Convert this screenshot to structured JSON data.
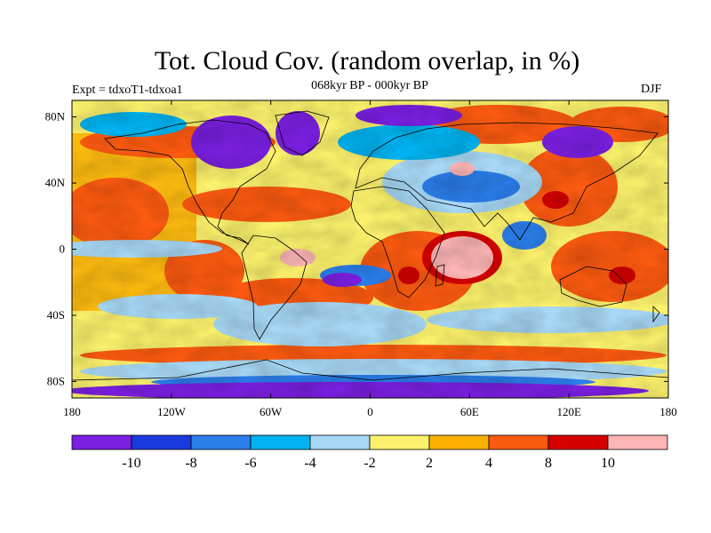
{
  "map": {
    "title": "Tot. Cloud Cov. (random overlap, in %)",
    "subtitle": "068kyr BP - 000kyr BP",
    "left_string": "Expt = tdxoT1-tdxoa1",
    "right_string": "DJF",
    "x_ticks": [
      {
        "lon": -180,
        "label": "180"
      },
      {
        "lon": -120,
        "label": "120W"
      },
      {
        "lon": -60,
        "label": "60W"
      },
      {
        "lon": 0,
        "label": "0"
      },
      {
        "lon": 60,
        "label": "60E"
      },
      {
        "lon": 120,
        "label": "120E"
      },
      {
        "lon": 180,
        "label": "180"
      }
    ],
    "y_ticks": [
      {
        "lat": 80,
        "label": "80N"
      },
      {
        "lat": 40,
        "label": "40N"
      },
      {
        "lat": 0,
        "label": "0"
      },
      {
        "lat": -40,
        "label": "40S"
      },
      {
        "lat": -80,
        "label": "80S"
      }
    ]
  },
  "legend": {
    "colors": [
      "#7a1fe0",
      "#1a3ae0",
      "#2b7de9",
      "#00b3f0",
      "#a7d8f5",
      "#fbf16c",
      "#fbb000",
      "#fb5a10",
      "#d40000",
      "#fcb4b4"
    ],
    "labels": [
      {
        "boundary": 1,
        "text": "-10"
      },
      {
        "boundary": 2,
        "text": "-8"
      },
      {
        "boundary": 3,
        "text": "-6"
      },
      {
        "boundary": 4,
        "text": "-4"
      },
      {
        "boundary": 5,
        "text": "-2"
      },
      {
        "boundary": 6,
        "text": "2"
      },
      {
        "boundary": 7,
        "text": "4"
      },
      {
        "boundary": 8,
        "text": "8"
      },
      {
        "boundary": 9,
        "text": "10"
      }
    ]
  }
}
